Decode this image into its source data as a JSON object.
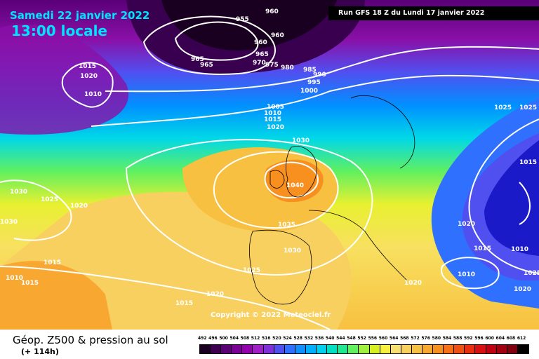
{
  "header": {
    "date": "Samedi 22 janvier 2022",
    "time": "13:00 locale",
    "run": "Run GFS 18 Z du Lundi 17 janvier 2022"
  },
  "copyright": "Copyright © 2022 Meteociel.fr",
  "footer": {
    "title": "Géop. Z500 & pression au sol",
    "subtitle": "(+ 114h)"
  },
  "legend": {
    "values": [
      "492",
      "496",
      "500",
      "504",
      "508",
      "512",
      "516",
      "520",
      "524",
      "528",
      "532",
      "536",
      "540",
      "544",
      "548",
      "552",
      "556",
      "560",
      "564",
      "568",
      "572",
      "576",
      "580",
      "584",
      "588",
      "592",
      "596",
      "600",
      "604",
      "608",
      "612"
    ],
    "colors": [
      "#1a0020",
      "#3d0050",
      "#5c0078",
      "#7a0096",
      "#9400b0",
      "#a020c8",
      "#8030d8",
      "#5050f0",
      "#3070ff",
      "#1090ff",
      "#00b0ff",
      "#00d0f0",
      "#00e0c0",
      "#20e890",
      "#60f060",
      "#a0f040",
      "#d8f020",
      "#f8f040",
      "#f8e070",
      "#f8d060",
      "#f8c040",
      "#f8a830",
      "#f89020",
      "#f87018",
      "#f05010",
      "#e83010",
      "#d81010",
      "#c00010",
      "#a00010",
      "#800010",
      "#000000"
    ]
  },
  "isobars": [
    {
      "text": "960",
      "pos": "top"
    },
    {
      "text": "955",
      "pos": "top"
    },
    {
      "text": "960",
      "pos": "top"
    },
    {
      "text": "960",
      "pos": "top"
    },
    {
      "text": "965",
      "pos": "top"
    },
    {
      "text": "965",
      "pos": "top"
    },
    {
      "text": "965",
      "pos": "top"
    },
    {
      "text": "970",
      "pos": "top"
    },
    {
      "text": "975",
      "pos": "top"
    },
    {
      "text": "980",
      "pos": "top"
    },
    {
      "text": "985",
      "pos": "top"
    },
    {
      "text": "990",
      "pos": "top"
    },
    {
      "text": "995",
      "pos": "top"
    },
    {
      "text": "1000",
      "pos": "top"
    },
    {
      "text": "1015",
      "pos": "nw"
    },
    {
      "text": "1020",
      "pos": "nw"
    },
    {
      "text": "1010",
      "pos": "nw"
    },
    {
      "text": "1005",
      "pos": "center"
    },
    {
      "text": "1010",
      "pos": "center"
    },
    {
      "text": "1015",
      "pos": "center"
    },
    {
      "text": "1020",
      "pos": "center"
    },
    {
      "text": "1030",
      "pos": "center"
    },
    {
      "text": "1040",
      "pos": "center"
    },
    {
      "text": "1035",
      "pos": "center"
    },
    {
      "text": "1030",
      "pos": "center"
    },
    {
      "text": "1025",
      "pos": "center"
    },
    {
      "text": "1030",
      "pos": "west"
    },
    {
      "text": "1025",
      "pos": "west"
    },
    {
      "text": "1020",
      "pos": "west"
    },
    {
      "text": "1030",
      "pos": "west"
    },
    {
      "text": "1015",
      "pos": "sw"
    },
    {
      "text": "1010",
      "pos": "sw"
    },
    {
      "text": "1015",
      "pos": "sw"
    },
    {
      "text": "1020",
      "pos": "south"
    },
    {
      "text": "1015",
      "pos": "south"
    },
    {
      "text": "1025",
      "pos": "east"
    },
    {
      "text": "1025",
      "pos": "east"
    },
    {
      "text": "1015",
      "pos": "east"
    },
    {
      "text": "1020",
      "pos": "east"
    },
    {
      "text": "1015",
      "pos": "east"
    },
    {
      "text": "1010",
      "pos": "east"
    },
    {
      "text": "1010",
      "pos": "east"
    },
    {
      "text": "1025",
      "pos": "east"
    },
    {
      "text": "1020",
      "pos": "east"
    },
    {
      "text": "1020",
      "pos": "east"
    }
  ]
}
